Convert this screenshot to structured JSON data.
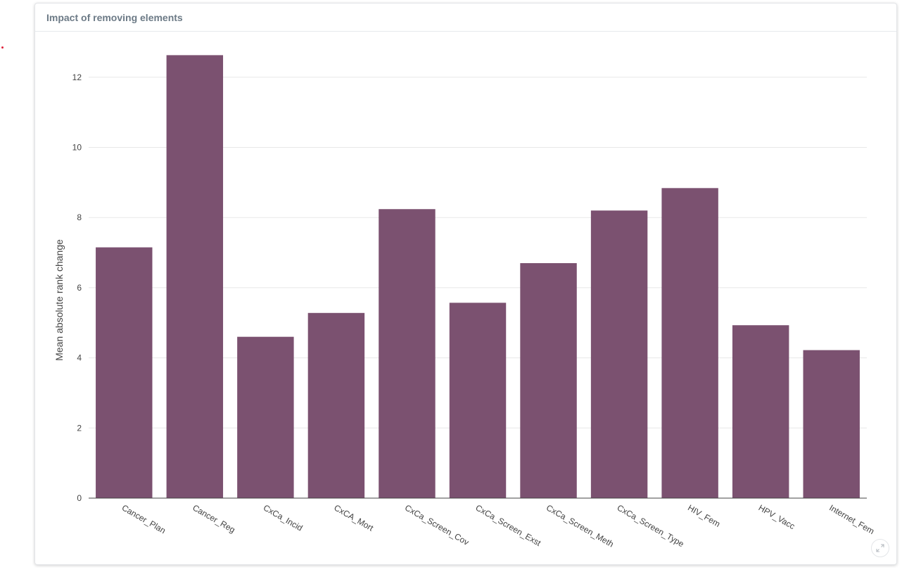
{
  "card": {
    "title": "Impact of removing elements",
    "expand_icon": "expand-icon"
  },
  "chart_data": {
    "type": "bar",
    "title": "",
    "xlabel": "",
    "ylabel": "Mean absolute rank change",
    "categories": [
      "Cancer_Plan",
      "Cancer_Reg",
      "CxCa_Incid",
      "CxCA_Mort",
      "CxCa_Screen_Cov",
      "CxCa_Screen_Exst",
      "CxCa_Screen_Meth",
      "CxCa_Screen_Type",
      "HIV_Fem",
      "HPV_Vacc",
      "Internet_Fem"
    ],
    "values": [
      7.15,
      12.63,
      4.6,
      5.28,
      8.24,
      5.57,
      6.7,
      8.2,
      8.84,
      4.93,
      4.22
    ],
    "ylim": [
      0,
      13.3
    ],
    "yticks": [
      0,
      2,
      4,
      6,
      8,
      10,
      12
    ],
    "grid": true,
    "bar_color": "#7b5170",
    "grid_color": "#e8e8e8"
  }
}
